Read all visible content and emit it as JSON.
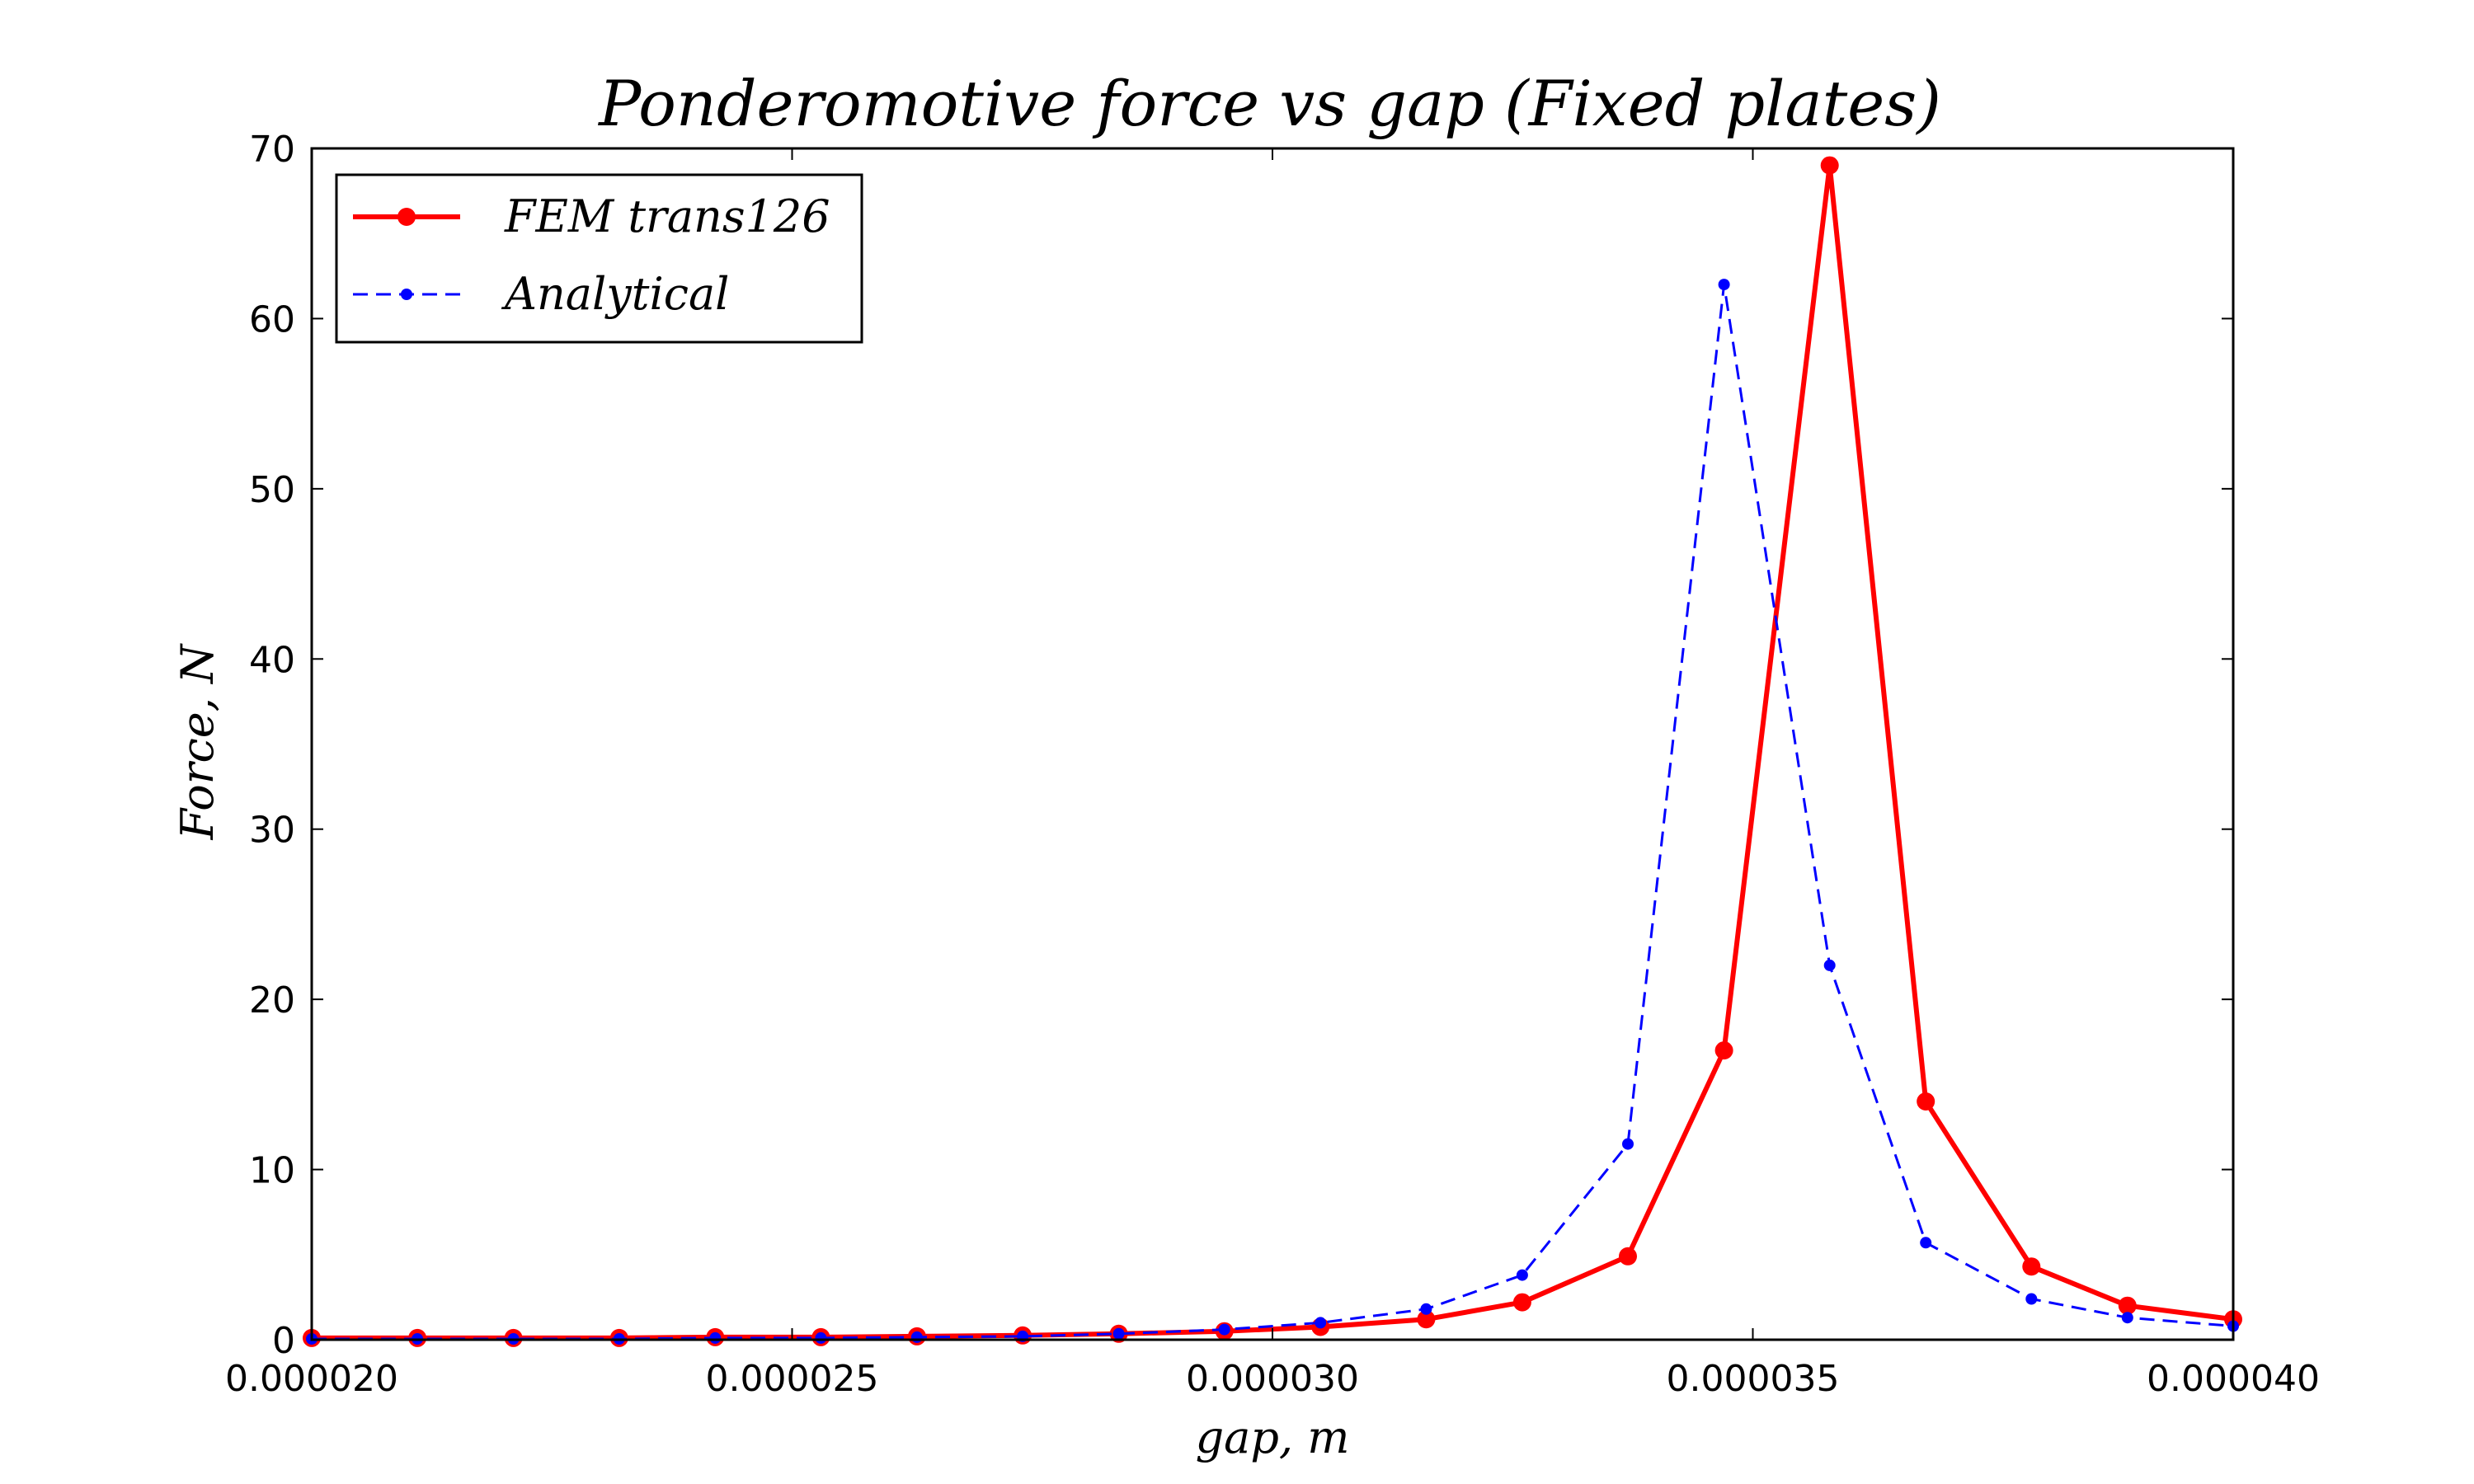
{
  "chart_data": {
    "type": "line",
    "title": "Ponderomotive force vs gap (Fixed plates)",
    "xlabel": "gap, m",
    "ylabel": "Force, N",
    "xlim": [
      2e-05,
      4e-05
    ],
    "ylim": [
      0,
      70
    ],
    "xticks": [
      2e-05,
      2.5e-05,
      3e-05,
      3.5e-05,
      4e-05
    ],
    "xtick_labels": [
      "0.000020",
      "0.000025",
      "0.000030",
      "0.000035",
      "0.000040"
    ],
    "yticks": [
      0,
      10,
      20,
      30,
      40,
      50,
      60,
      70
    ],
    "ytick_labels": [
      "0",
      "10",
      "20",
      "30",
      "40",
      "50",
      "60",
      "70"
    ],
    "grid": false,
    "legend_position": "top-left",
    "series": [
      {
        "name": "FEM trans126",
        "color": "#ff0000",
        "style": "solid",
        "marker": "circle",
        "x": [
          2e-05,
          2.11e-05,
          2.21e-05,
          2.32e-05,
          2.42e-05,
          2.53e-05,
          2.63e-05,
          2.74e-05,
          2.84e-05,
          2.95e-05,
          3.05e-05,
          3.16e-05,
          3.26e-05,
          3.37e-05,
          3.47e-05,
          3.58e-05,
          3.68e-05,
          3.79e-05,
          3.89e-05,
          4e-05
        ],
        "y": [
          0.1,
          0.1,
          0.1,
          0.1,
          0.15,
          0.15,
          0.2,
          0.25,
          0.35,
          0.5,
          0.75,
          1.2,
          2.2,
          4.9,
          17.0,
          69.0,
          14.0,
          4.3,
          2.0,
          1.2
        ]
      },
      {
        "name": "Analytical",
        "color": "#0000ff",
        "style": "dashed",
        "marker": "circle",
        "x": [
          2e-05,
          2.11e-05,
          2.21e-05,
          2.32e-05,
          2.42e-05,
          2.53e-05,
          2.63e-05,
          2.74e-05,
          2.84e-05,
          2.95e-05,
          3.05e-05,
          3.16e-05,
          3.26e-05,
          3.37e-05,
          3.47e-05,
          3.58e-05,
          3.68e-05,
          3.79e-05,
          3.89e-05,
          4e-05
        ],
        "y": [
          0.05,
          0.05,
          0.05,
          0.05,
          0.1,
          0.1,
          0.15,
          0.2,
          0.35,
          0.6,
          1.0,
          1.8,
          3.8,
          11.5,
          62.0,
          22.0,
          5.7,
          2.4,
          1.3,
          0.8
        ]
      }
    ]
  }
}
